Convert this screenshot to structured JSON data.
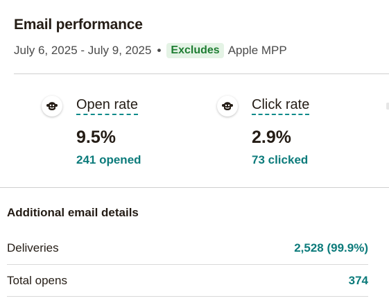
{
  "header": {
    "title": "Email performance",
    "date_range": "July 6, 2025 - July 9, 2025",
    "separator": "•",
    "badge": "Excludes",
    "badge_suffix": "Apple MPP"
  },
  "metrics": [
    {
      "label": "Open rate",
      "value": "9.5%",
      "sub": "241 opened",
      "icon": "mailchimp-freddie-icon"
    },
    {
      "label": "Click rate",
      "value": "2.9%",
      "sub": "73 clicked",
      "icon": "mailchimp-freddie-icon"
    }
  ],
  "details": {
    "title": "Additional email details",
    "rows": [
      {
        "label": "Deliveries",
        "value": "2,528 (99.9%)"
      },
      {
        "label": "Total opens",
        "value": "374"
      }
    ]
  },
  "colors": {
    "accent_teal": "#0c7b7b",
    "badge_green": "#1e7d32",
    "badge_bg": "#e4f3e5"
  }
}
